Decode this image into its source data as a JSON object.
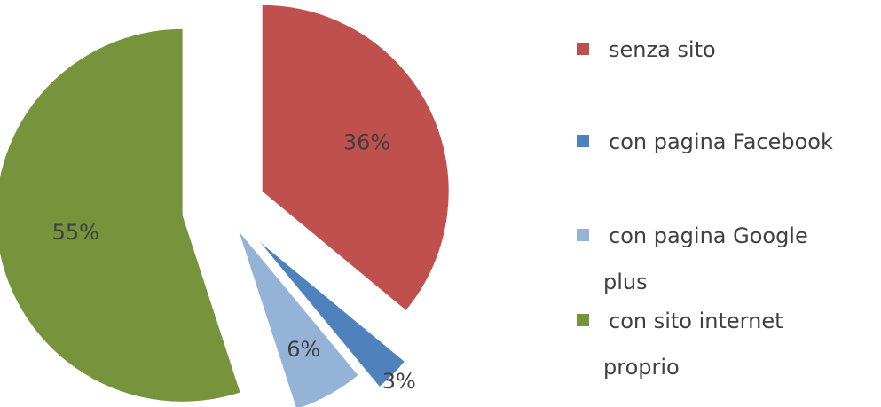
{
  "chart_data": {
    "type": "pie",
    "slices": [
      {
        "name": "senza sito",
        "value": 36,
        "label": "36%",
        "color": "#C0504D"
      },
      {
        "name": "con pagina Facebook",
        "value": 3,
        "label": "3%",
        "color": "#4F81BD"
      },
      {
        "name": "con pagina Google plus",
        "value": 6,
        "label": "6%",
        "color": "#95B3D7"
      },
      {
        "name": "con sito internet proprio",
        "value": 55,
        "label": "55%",
        "color": "#77933C"
      }
    ],
    "exploded": true,
    "legend_position": "right"
  },
  "legend": {
    "items": [
      {
        "label_line1": "senza sito",
        "label_line2": ""
      },
      {
        "label_line1": "con pagina Facebook",
        "label_line2": ""
      },
      {
        "label_line1": "con pagina Google",
        "label_line2": "plus"
      },
      {
        "label_line1": "con sito internet",
        "label_line2": "proprio"
      }
    ]
  }
}
